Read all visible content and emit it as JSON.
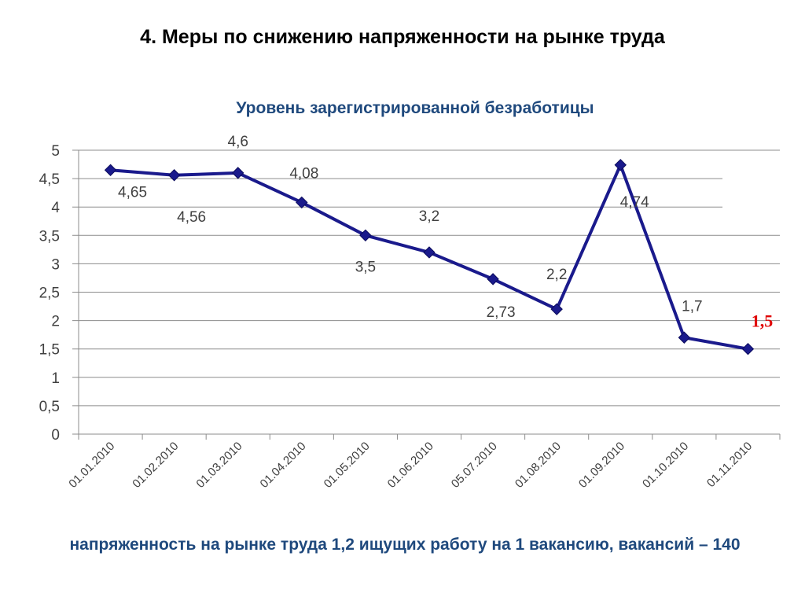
{
  "slide": {
    "title": "4. Меры по снижению напряженности на рынке труда",
    "footer": "напряженность на рынке труда 1,2 ищущих работу на 1 вакансию, вакансий – 140"
  },
  "chart_data": {
    "type": "line",
    "title": "Уровень зарегистрированной безработицы",
    "xlabel": "",
    "ylabel": "",
    "ylim": [
      0,
      5
    ],
    "yticks": [
      "0",
      "0,5",
      "1",
      "1,5",
      "2",
      "2,5",
      "3",
      "3,5",
      "4",
      "4,5",
      "5"
    ],
    "categories": [
      "01.01.2010",
      "01.02.2010",
      "01.03.2010",
      "01.04.2010",
      "01.05.2010",
      "01.06.2010",
      "05.07.2010",
      "01.08.2010",
      "01.09.2010",
      "01.10.2010",
      "01.11.2010"
    ],
    "series": [
      {
        "values": [
          4.65,
          4.56,
          4.6,
          4.08,
          3.5,
          3.2,
          2.73,
          2.2,
          4.74,
          1.7,
          1.5
        ],
        "data_labels": [
          "4,65",
          "4,56",
          "4,6",
          "4,08",
          "3,5",
          "3,2",
          "2,73",
          "2,2",
          "4,74",
          "1,7",
          "1,5"
        ],
        "color": "#1a1a8c"
      }
    ],
    "highlight_label_color": "#e00000",
    "grid": true,
    "legend": "none"
  }
}
